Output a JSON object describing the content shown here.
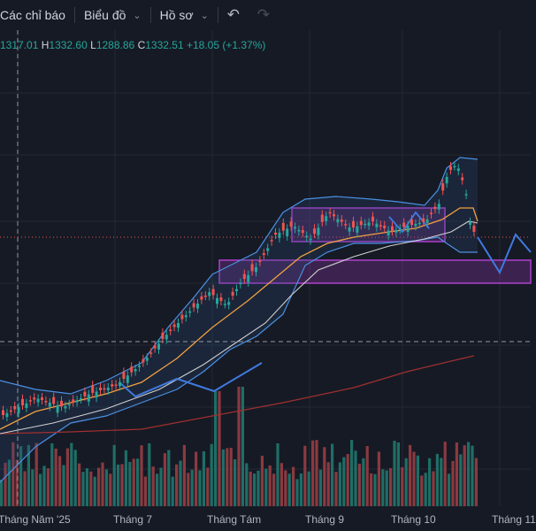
{
  "toolbar": {
    "indicators_label": "Các chỉ báo",
    "chart_type_label": "Biểu đồ",
    "profile_label": "Hồ sơ",
    "undo_icon": "undo-icon",
    "redo_icon": "redo-icon"
  },
  "ohlc": {
    "open_value": "1317.01",
    "high_label": "H",
    "high_value": "1332.60",
    "low_label": "L",
    "low_value": "1288.86",
    "close_label": "C",
    "close_value": "1332.51",
    "change": "+18.05 (+1.37%)"
  },
  "colors": {
    "background": "#161a25",
    "up": "#26a69a",
    "down": "#ef5350",
    "bollinger": "#4a90e2",
    "ma_orange": "#f0a040",
    "ma_white": "#d0d0d0",
    "ma_red": "#a03030",
    "zone": "#b040d0",
    "projection": "#3f7ae0"
  },
  "chart_data": {
    "type": "candlestick",
    "x_axis_labels": [
      "Tháng Năm '25",
      "Tháng 7",
      "Tháng Tám",
      "Tháng 9",
      "Tháng 10",
      "Tháng 11"
    ],
    "last_close": 1332.51,
    "last_change": "+18.05 (+1.37%)",
    "overlays": [
      "bollinger-bands",
      "moving-average-orange",
      "moving-average-white",
      "moving-average-red",
      "volume-bars",
      "consolidation-box",
      "support-zone",
      "projected-path"
    ],
    "grid": true
  }
}
